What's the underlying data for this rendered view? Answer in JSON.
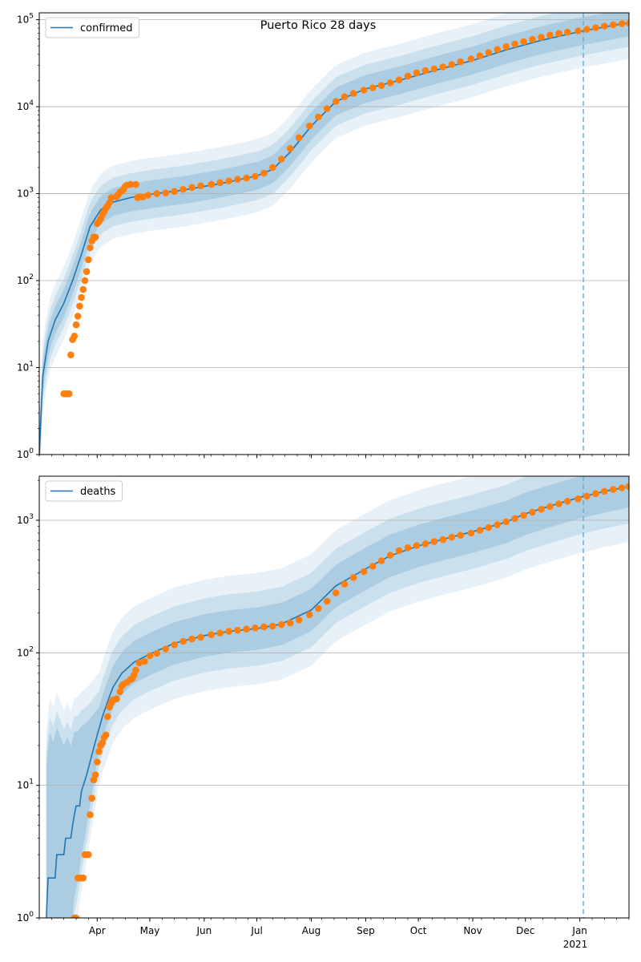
{
  "chart_data": {
    "title": "Puerto Rico 28 days",
    "x_axis": {
      "type": "date",
      "range": [
        "2020-02-28",
        "2021-01-29"
      ],
      "tick_labels": [
        {
          "date": "2020-04-01",
          "label": "Apr"
        },
        {
          "date": "2020-05-01",
          "label": "May"
        },
        {
          "date": "2020-06-01",
          "label": "Jun"
        },
        {
          "date": "2020-07-01",
          "label": "Jul"
        },
        {
          "date": "2020-08-01",
          "label": "Aug"
        },
        {
          "date": "2020-09-01",
          "label": "Sep"
        },
        {
          "date": "2020-10-01",
          "label": "Oct"
        },
        {
          "date": "2020-11-01",
          "label": "Nov"
        },
        {
          "date": "2020-12-01",
          "label": "Dec"
        },
        {
          "date": "2021-01-01",
          "label": "Jan"
        }
      ],
      "year_label": "2021",
      "forecast_start_date": "2021-01-03"
    },
    "panels": [
      {
        "type": "line",
        "legend": "confirmed",
        "legend_position": "upper left",
        "y_scale": "log",
        "ylim": [
          1,
          120000
        ],
        "y_ticks": [
          1,
          10,
          100,
          1000,
          10000,
          100000
        ],
        "y_tick_labels": [
          "10^0",
          "10^1",
          "10^2",
          "10^3",
          "10^4",
          "10^5"
        ],
        "grid": "horizontal",
        "model": [
          [
            "2020-02-28",
            1
          ],
          [
            "2020-03-01",
            8
          ],
          [
            "2020-03-04",
            20
          ],
          [
            "2020-03-08",
            35
          ],
          [
            "2020-03-13",
            55
          ],
          [
            "2020-03-18",
            100
          ],
          [
            "2020-03-23",
            200
          ],
          [
            "2020-03-28",
            420
          ],
          [
            "2020-04-03",
            650
          ],
          [
            "2020-04-10",
            800
          ],
          [
            "2020-04-20",
            900
          ],
          [
            "2020-05-01",
            980
          ],
          [
            "2020-05-20",
            1100
          ],
          [
            "2020-06-10",
            1300
          ],
          [
            "2020-07-01",
            1600
          ],
          [
            "2020-07-10",
            1900
          ],
          [
            "2020-07-20",
            3000
          ],
          [
            "2020-08-01",
            6000
          ],
          [
            "2020-08-15",
            11500
          ],
          [
            "2020-09-01",
            16000
          ],
          [
            "2020-09-20",
            20000
          ],
          [
            "2020-10-10",
            26000
          ],
          [
            "2020-11-01",
            34000
          ],
          [
            "2020-11-20",
            45000
          ],
          [
            "2020-12-10",
            58000
          ],
          [
            "2021-01-01",
            73000
          ],
          [
            "2021-01-29",
            93000
          ]
        ],
        "observed": [
          [
            "2020-03-13",
            5
          ],
          [
            "2020-03-14",
            5
          ],
          [
            "2020-03-15",
            5
          ],
          [
            "2020-03-16",
            5
          ],
          [
            "2020-03-17",
            14
          ],
          [
            "2020-03-18",
            21
          ],
          [
            "2020-03-19",
            23
          ],
          [
            "2020-03-20",
            31
          ],
          [
            "2020-03-21",
            39
          ],
          [
            "2020-03-22",
            51
          ],
          [
            "2020-03-23",
            64
          ],
          [
            "2020-03-24",
            79
          ],
          [
            "2020-03-25",
            100
          ],
          [
            "2020-03-26",
            127
          ],
          [
            "2020-03-27",
            174
          ],
          [
            "2020-03-28",
            239
          ],
          [
            "2020-03-29",
            286
          ],
          [
            "2020-03-30",
            316
          ],
          [
            "2020-03-31",
            316
          ],
          [
            "2020-04-01",
            452
          ],
          [
            "2020-04-02",
            475
          ],
          [
            "2020-04-03",
            513
          ],
          [
            "2020-04-04",
            573
          ],
          [
            "2020-04-05",
            620
          ],
          [
            "2020-04-06",
            683
          ],
          [
            "2020-04-07",
            725
          ],
          [
            "2020-04-08",
            788
          ],
          [
            "2020-04-09",
            897
          ],
          [
            "2020-04-12",
            923
          ],
          [
            "2020-04-13",
            974
          ],
          [
            "2020-04-14",
            1043
          ],
          [
            "2020-04-15",
            1068
          ],
          [
            "2020-04-16",
            1118
          ],
          [
            "2020-04-17",
            1213
          ],
          [
            "2020-04-18",
            1252
          ],
          [
            "2020-04-20",
            1276
          ],
          [
            "2020-04-23",
            1276
          ],
          [
            "2020-04-24",
            900
          ],
          [
            "2020-04-25",
            915
          ],
          [
            "2020-04-27",
            915
          ],
          [
            "2020-04-30",
            960
          ],
          [
            "2020-05-05",
            1000
          ],
          [
            "2020-05-10",
            1020
          ],
          [
            "2020-05-15",
            1060
          ],
          [
            "2020-05-20",
            1120
          ],
          [
            "2020-05-25",
            1180
          ],
          [
            "2020-05-30",
            1230
          ],
          [
            "2020-06-05",
            1280
          ],
          [
            "2020-06-10",
            1340
          ],
          [
            "2020-06-15",
            1400
          ],
          [
            "2020-06-20",
            1460
          ],
          [
            "2020-06-25",
            1510
          ],
          [
            "2020-06-30",
            1580
          ],
          [
            "2020-07-05",
            1720
          ],
          [
            "2020-07-10",
            2000
          ],
          [
            "2020-07-15",
            2500
          ],
          [
            "2020-07-20",
            3300
          ],
          [
            "2020-07-25",
            4400
          ],
          [
            "2020-07-31",
            6000
          ],
          [
            "2020-08-05",
            7600
          ],
          [
            "2020-08-10",
            9500
          ],
          [
            "2020-08-15",
            11500
          ],
          [
            "2020-08-20",
            13000
          ],
          [
            "2020-08-25",
            14200
          ],
          [
            "2020-08-31",
            15500
          ],
          [
            "2020-09-05",
            16500
          ],
          [
            "2020-09-10",
            17500
          ],
          [
            "2020-09-15",
            18800
          ],
          [
            "2020-09-20",
            20300
          ],
          [
            "2020-09-25",
            22500
          ],
          [
            "2020-09-30",
            24500
          ],
          [
            "2020-10-05",
            26000
          ],
          [
            "2020-10-10",
            27200
          ],
          [
            "2020-10-15",
            28700
          ],
          [
            "2020-10-20",
            30500
          ],
          [
            "2020-10-25",
            32800
          ],
          [
            "2020-10-31",
            35500
          ],
          [
            "2020-11-05",
            38500
          ],
          [
            "2020-11-10",
            42000
          ],
          [
            "2020-11-15",
            45500
          ],
          [
            "2020-11-20",
            49000
          ],
          [
            "2020-11-25",
            52500
          ],
          [
            "2020-11-30",
            56000
          ],
          [
            "2020-12-05",
            59500
          ],
          [
            "2020-12-10",
            63000
          ],
          [
            "2020-12-15",
            66500
          ],
          [
            "2020-12-20",
            69500
          ],
          [
            "2020-12-25",
            72000
          ],
          [
            "2020-12-31",
            74500
          ],
          [
            "2021-01-05",
            77500
          ],
          [
            "2021-01-10",
            81000
          ],
          [
            "2021-01-15",
            84500
          ],
          [
            "2021-01-20",
            87500
          ],
          [
            "2021-01-25",
            90000
          ],
          [
            "2021-01-29",
            91000
          ]
        ]
      },
      {
        "type": "line",
        "legend": "deaths",
        "legend_position": "upper left",
        "y_scale": "log",
        "ylim": [
          1,
          2150
        ],
        "y_ticks": [
          1,
          10,
          100,
          1000
        ],
        "y_tick_labels": [
          "10^0",
          "10^1",
          "10^2",
          "10^3"
        ],
        "grid": "horizontal",
        "model": [
          [
            "2020-03-03",
            1
          ],
          [
            "2020-03-04",
            2
          ],
          [
            "2020-03-08",
            2
          ],
          [
            "2020-03-09",
            3
          ],
          [
            "2020-03-13",
            3
          ],
          [
            "2020-03-14",
            4
          ],
          [
            "2020-03-17",
            4
          ],
          [
            "2020-03-18",
            5
          ],
          [
            "2020-03-19",
            6
          ],
          [
            "2020-03-20",
            7
          ],
          [
            "2020-03-22",
            7
          ],
          [
            "2020-03-23",
            9
          ],
          [
            "2020-03-26",
            12
          ],
          [
            "2020-03-29",
            17
          ],
          [
            "2020-04-01",
            24
          ],
          [
            "2020-04-04",
            33
          ],
          [
            "2020-04-07",
            43
          ],
          [
            "2020-04-10",
            55
          ],
          [
            "2020-04-15",
            70
          ],
          [
            "2020-04-22",
            85
          ],
          [
            "2020-05-01",
            98
          ],
          [
            "2020-05-15",
            118
          ],
          [
            "2020-06-01",
            135
          ],
          [
            "2020-06-15",
            145
          ],
          [
            "2020-07-01",
            152
          ],
          [
            "2020-07-15",
            165
          ],
          [
            "2020-08-01",
            210
          ],
          [
            "2020-08-15",
            320
          ],
          [
            "2020-09-01",
            430
          ],
          [
            "2020-09-15",
            540
          ],
          [
            "2020-10-01",
            640
          ],
          [
            "2020-10-15",
            720
          ],
          [
            "2020-11-01",
            820
          ],
          [
            "2020-11-20",
            970
          ],
          [
            "2020-12-01",
            1120
          ],
          [
            "2020-12-15",
            1280
          ],
          [
            "2021-01-01",
            1490
          ],
          [
            "2021-01-15",
            1650
          ],
          [
            "2021-01-29",
            1800
          ]
        ],
        "observed": [
          [
            "2020-03-19",
            1
          ],
          [
            "2020-03-20",
            1
          ],
          [
            "2020-03-21",
            2
          ],
          [
            "2020-03-22",
            2
          ],
          [
            "2020-03-23",
            2
          ],
          [
            "2020-03-24",
            2
          ],
          [
            "2020-03-25",
            3
          ],
          [
            "2020-03-26",
            3
          ],
          [
            "2020-03-27",
            3
          ],
          [
            "2020-03-28",
            6
          ],
          [
            "2020-03-29",
            8
          ],
          [
            "2020-03-30",
            11
          ],
          [
            "2020-03-31",
            12
          ],
          [
            "2020-04-01",
            15
          ],
          [
            "2020-04-02",
            18
          ],
          [
            "2020-04-03",
            20
          ],
          [
            "2020-04-04",
            21
          ],
          [
            "2020-04-05",
            23
          ],
          [
            "2020-04-06",
            24
          ],
          [
            "2020-04-07",
            33
          ],
          [
            "2020-04-08",
            39
          ],
          [
            "2020-04-09",
            42
          ],
          [
            "2020-04-10",
            44
          ],
          [
            "2020-04-12",
            45
          ],
          [
            "2020-04-14",
            51
          ],
          [
            "2020-04-15",
            56
          ],
          [
            "2020-04-16",
            58
          ],
          [
            "2020-04-18",
            60
          ],
          [
            "2020-04-20",
            63
          ],
          [
            "2020-04-21",
            64
          ],
          [
            "2020-04-22",
            68
          ],
          [
            "2020-04-23",
            74
          ],
          [
            "2020-04-25",
            84
          ],
          [
            "2020-04-28",
            86
          ],
          [
            "2020-05-01",
            95
          ],
          [
            "2020-05-05",
            99
          ],
          [
            "2020-05-10",
            107
          ],
          [
            "2020-05-15",
            115
          ],
          [
            "2020-05-20",
            122
          ],
          [
            "2020-05-25",
            127
          ],
          [
            "2020-05-30",
            131
          ],
          [
            "2020-06-05",
            137
          ],
          [
            "2020-06-10",
            141
          ],
          [
            "2020-06-15",
            145
          ],
          [
            "2020-06-20",
            148
          ],
          [
            "2020-06-25",
            151
          ],
          [
            "2020-06-30",
            154
          ],
          [
            "2020-07-05",
            157
          ],
          [
            "2020-07-10",
            159
          ],
          [
            "2020-07-15",
            163
          ],
          [
            "2020-07-20",
            168
          ],
          [
            "2020-07-25",
            177
          ],
          [
            "2020-07-31",
            194
          ],
          [
            "2020-08-05",
            216
          ],
          [
            "2020-08-10",
            245
          ],
          [
            "2020-08-15",
            283
          ],
          [
            "2020-08-20",
            330
          ],
          [
            "2020-08-25",
            370
          ],
          [
            "2020-08-31",
            410
          ],
          [
            "2020-09-05",
            450
          ],
          [
            "2020-09-10",
            495
          ],
          [
            "2020-09-15",
            545
          ],
          [
            "2020-09-20",
            590
          ],
          [
            "2020-09-25",
            620
          ],
          [
            "2020-09-30",
            645
          ],
          [
            "2020-10-05",
            665
          ],
          [
            "2020-10-10",
            690
          ],
          [
            "2020-10-15",
            715
          ],
          [
            "2020-10-20",
            745
          ],
          [
            "2020-10-25",
            770
          ],
          [
            "2020-10-31",
            800
          ],
          [
            "2020-11-05",
            840
          ],
          [
            "2020-11-10",
            880
          ],
          [
            "2020-11-15",
            925
          ],
          [
            "2020-11-20",
            975
          ],
          [
            "2020-11-25",
            1030
          ],
          [
            "2020-11-30",
            1090
          ],
          [
            "2020-12-05",
            1150
          ],
          [
            "2020-12-10",
            1210
          ],
          [
            "2020-12-15",
            1270
          ],
          [
            "2020-12-20",
            1330
          ],
          [
            "2020-12-25",
            1390
          ],
          [
            "2020-12-31",
            1450
          ],
          [
            "2021-01-05",
            1520
          ],
          [
            "2021-01-10",
            1590
          ],
          [
            "2021-01-15",
            1655
          ],
          [
            "2021-01-20",
            1710
          ],
          [
            "2021-01-25",
            1760
          ],
          [
            "2021-01-29",
            1800
          ]
        ]
      }
    ]
  },
  "colors": {
    "model_line": "#1f77b4",
    "observed_points": "#ff7f0e",
    "uncertainty_band": "#1f77b4",
    "forecast_line": "#6baed6",
    "grid": "#b0b0b0"
  }
}
